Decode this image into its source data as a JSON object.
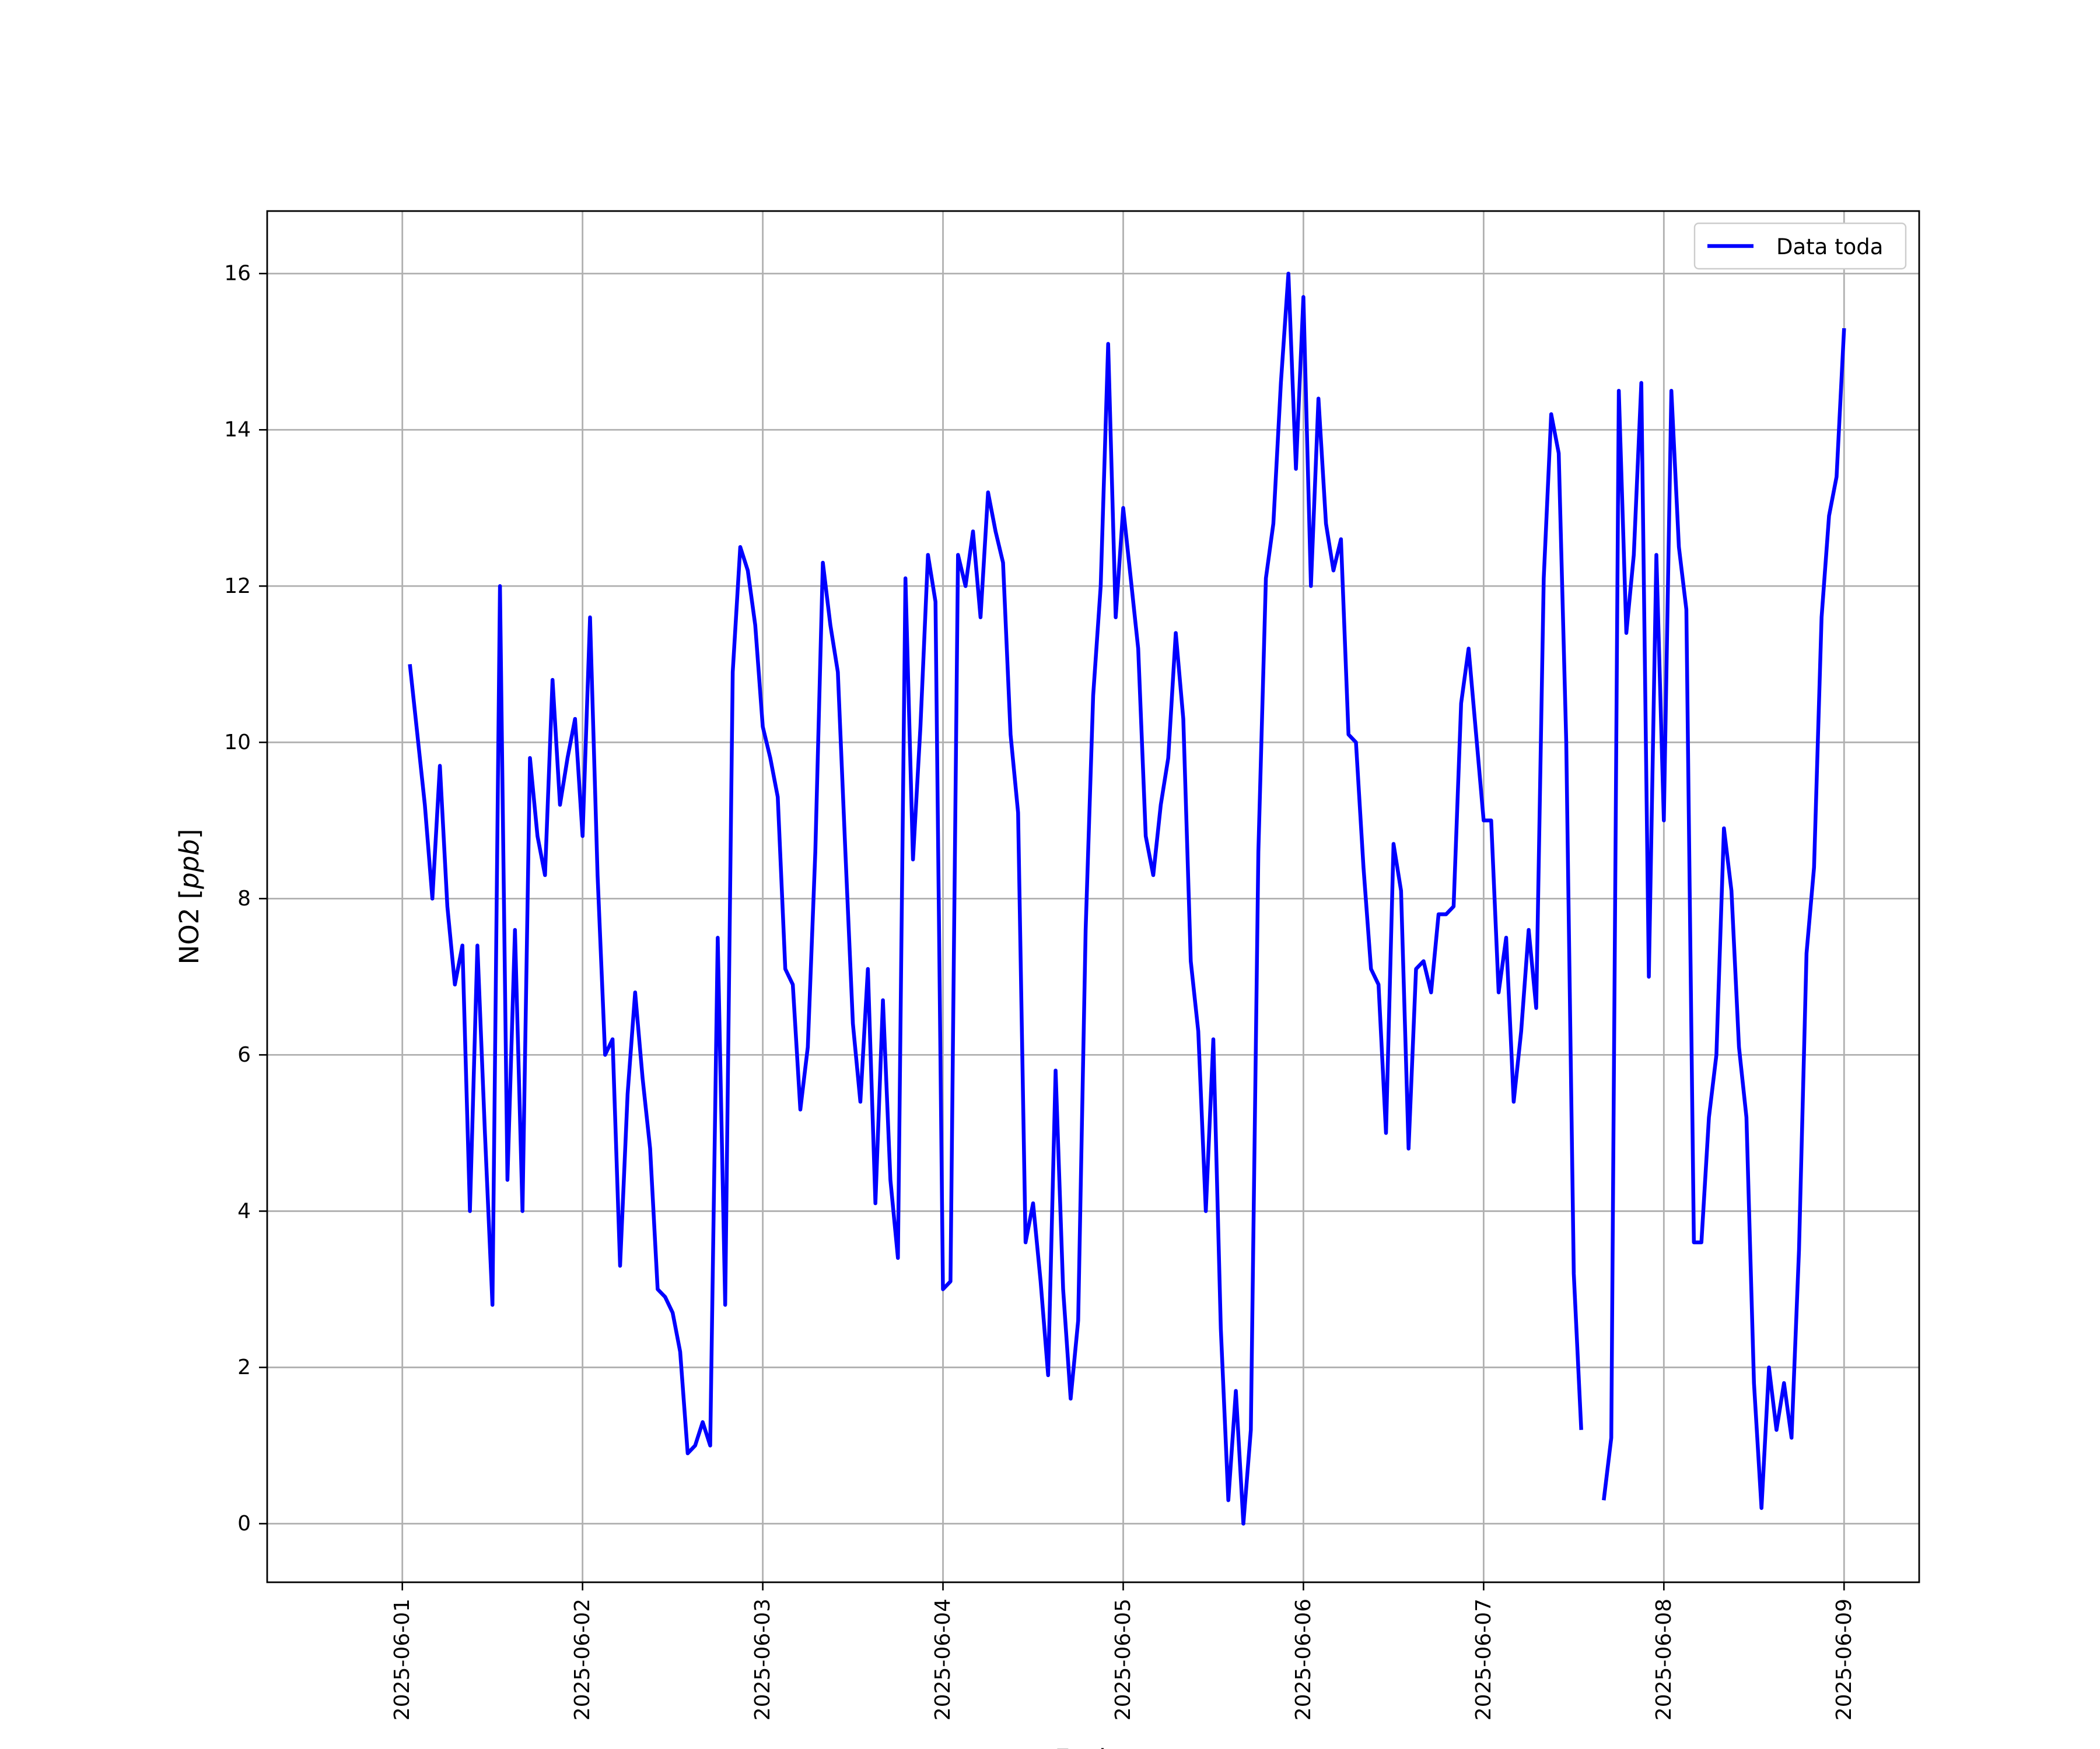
{
  "chart_data": {
    "type": "line",
    "title": "",
    "xlabel": "Fecha",
    "ylabel": "NO2 [",
    "ylabel_unit": "ppb",
    "ylabel_close": "]",
    "x_ticks": [
      "2025-06-01",
      "2025-06-02",
      "2025-06-03",
      "2025-06-04",
      "2025-06-05",
      "2025-06-06",
      "2025-06-07",
      "2025-06-08",
      "2025-06-09"
    ],
    "y_ticks": [
      0,
      2,
      4,
      6,
      8,
      10,
      12,
      14,
      16
    ],
    "xlim": [
      "2025-05-31 06:00",
      "2025-06-09 10:00"
    ],
    "ylim": [
      -0.75,
      16.8
    ],
    "grid": true,
    "legend_position": "top-right",
    "series": [
      {
        "name": "Data toda",
        "color": "#0000ff",
        "x": [
          "2025-06-01 01:00",
          "2025-06-01 02:00",
          "2025-06-01 03:00",
          "2025-06-01 04:00",
          "2025-06-01 05:00",
          "2025-06-01 06:00",
          "2025-06-01 07:00",
          "2025-06-01 08:00",
          "2025-06-01 09:00",
          "2025-06-01 10:00",
          "2025-06-01 11:00",
          "2025-06-01 12:00",
          "2025-06-01 13:00",
          "2025-06-01 14:00",
          "2025-06-01 15:00",
          "2025-06-01 16:00",
          "2025-06-01 17:00",
          "2025-06-01 18:00",
          "2025-06-01 19:00",
          "2025-06-01 20:00",
          "2025-06-01 21:00",
          "2025-06-01 22:00",
          "2025-06-01 23:00",
          "2025-06-02 00:00",
          "2025-06-02 01:00",
          "2025-06-02 02:00",
          "2025-06-02 03:00",
          "2025-06-02 04:00",
          "2025-06-02 05:00",
          "2025-06-02 06:00",
          "2025-06-02 07:00",
          "2025-06-02 08:00",
          "2025-06-02 09:00",
          "2025-06-02 10:00",
          "2025-06-02 11:00",
          "2025-06-02 12:00",
          "2025-06-02 13:00",
          "2025-06-02 14:00",
          "2025-06-02 15:00",
          "2025-06-02 16:00",
          "2025-06-02 17:00",
          "2025-06-02 18:00",
          "2025-06-02 19:00",
          "2025-06-02 20:00",
          "2025-06-02 21:00",
          "2025-06-02 22:00",
          "2025-06-02 23:00",
          "2025-06-03 00:00",
          "2025-06-03 01:00",
          "2025-06-03 02:00",
          "2025-06-03 03:00",
          "2025-06-03 04:00",
          "2025-06-03 05:00",
          "2025-06-03 06:00",
          "2025-06-03 07:00",
          "2025-06-03 08:00",
          "2025-06-03 09:00",
          "2025-06-03 10:00",
          "2025-06-03 11:00",
          "2025-06-03 12:00",
          "2025-06-03 13:00",
          "2025-06-03 14:00",
          "2025-06-03 15:00",
          "2025-06-03 16:00",
          "2025-06-03 17:00",
          "2025-06-03 18:00",
          "2025-06-03 19:00",
          "2025-06-03 20:00",
          "2025-06-03 21:00",
          "2025-06-03 22:00",
          "2025-06-03 23:00",
          "2025-06-04 00:00",
          "2025-06-04 01:00",
          "2025-06-04 02:00",
          "2025-06-04 03:00",
          "2025-06-04 04:00",
          "2025-06-04 05:00",
          "2025-06-04 06:00",
          "2025-06-04 07:00",
          "2025-06-04 08:00",
          "2025-06-04 09:00",
          "2025-06-04 10:00",
          "2025-06-04 11:00",
          "2025-06-04 12:00",
          "2025-06-04 13:00",
          "2025-06-04 14:00",
          "2025-06-04 15:00",
          "2025-06-04 16:00",
          "2025-06-04 17:00",
          "2025-06-04 18:00",
          "2025-06-04 19:00",
          "2025-06-04 20:00",
          "2025-06-04 21:00",
          "2025-06-04 22:00",
          "2025-06-04 23:00",
          "2025-06-05 00:00",
          "2025-06-05 01:00",
          "2025-06-05 02:00",
          "2025-06-05 03:00",
          "2025-06-05 04:00",
          "2025-06-05 05:00",
          "2025-06-05 06:00",
          "2025-06-05 07:00",
          "2025-06-05 08:00",
          "2025-06-05 09:00",
          "2025-06-05 10:00",
          "2025-06-05 11:00",
          "2025-06-05 12:00",
          "2025-06-05 13:00",
          "2025-06-05 14:00",
          "2025-06-05 15:00",
          "2025-06-05 16:00",
          "2025-06-05 17:00",
          "2025-06-05 18:00",
          "2025-06-05 19:00",
          "2025-06-05 20:00",
          "2025-06-05 21:00",
          "2025-06-05 22:00",
          "2025-06-05 23:00",
          "2025-06-06 00:00",
          "2025-06-06 01:00",
          "2025-06-06 02:00",
          "2025-06-06 03:00",
          "2025-06-06 04:00",
          "2025-06-06 05:00",
          "2025-06-06 06:00",
          "2025-06-06 07:00",
          "2025-06-06 08:00",
          "2025-06-06 09:00",
          "2025-06-06 10:00",
          "2025-06-06 11:00",
          "2025-06-06 12:00",
          "2025-06-06 13:00",
          "2025-06-06 14:00",
          "2025-06-06 15:00",
          "2025-06-06 16:00",
          "2025-06-06 17:00",
          "2025-06-06 18:00",
          "2025-06-06 19:00",
          "2025-06-06 20:00",
          "2025-06-06 21:00",
          "2025-06-06 22:00",
          "2025-06-06 23:00",
          "2025-06-07 00:00",
          "2025-06-07 01:00",
          "2025-06-07 02:00",
          "2025-06-07 03:00",
          "2025-06-07 04:00",
          "2025-06-07 05:00",
          "2025-06-07 06:00",
          "2025-06-07 07:00",
          "2025-06-07 08:00",
          "2025-06-07 09:00",
          "2025-06-07 10:00",
          "2025-06-07 11:00",
          "2025-06-07 12:00",
          "2025-06-07 13:00",
          null,
          "2025-06-07 16:00",
          "2025-06-07 17:00",
          "2025-06-07 18:00",
          "2025-06-07 19:00",
          "2025-06-07 20:00",
          "2025-06-07 21:00",
          "2025-06-07 22:00",
          "2025-06-07 23:00",
          "2025-06-08 00:00",
          "2025-06-08 01:00",
          "2025-06-08 02:00",
          "2025-06-08 03:00",
          "2025-06-08 04:00",
          "2025-06-08 05:00",
          "2025-06-08 06:00",
          "2025-06-08 07:00",
          "2025-06-08 08:00",
          "2025-06-08 09:00",
          "2025-06-08 10:00",
          "2025-06-08 11:00",
          "2025-06-08 12:00",
          "2025-06-08 13:00",
          "2025-06-08 14:00",
          "2025-06-08 15:00",
          "2025-06-08 16:00",
          "2025-06-08 17:00",
          "2025-06-08 18:00",
          "2025-06-08 19:00",
          "2025-06-08 20:00",
          "2025-06-08 21:00",
          "2025-06-08 22:00",
          "2025-06-08 23:00",
          "2025-06-09 00:00"
        ],
        "y": [
          11.0,
          10.1,
          9.2,
          8.0,
          9.7,
          7.9,
          6.9,
          7.4,
          4.0,
          7.4,
          5.0,
          2.8,
          12.0,
          4.4,
          7.6,
          4.0,
          9.8,
          8.8,
          8.3,
          10.8,
          9.2,
          9.8,
          10.3,
          8.8,
          11.6,
          8.3,
          6.0,
          6.2,
          3.3,
          5.5,
          6.8,
          5.7,
          4.8,
          3.0,
          2.9,
          2.7,
          2.2,
          0.9,
          1.0,
          1.3,
          1.0,
          7.5,
          2.8,
          10.9,
          12.5,
          12.2,
          11.5,
          10.2,
          9.8,
          9.3,
          7.1,
          6.9,
          5.3,
          6.1,
          8.6,
          12.3,
          11.5,
          10.9,
          8.6,
          6.4,
          5.4,
          7.1,
          4.1,
          6.7,
          4.4,
          3.4,
          12.1,
          8.5,
          10.2,
          12.4,
          11.8,
          3.0,
          3.1,
          12.4,
          12.0,
          12.7,
          11.6,
          13.2,
          12.7,
          12.3,
          10.1,
          9.1,
          3.6,
          4.1,
          3.1,
          1.9,
          5.8,
          3.0,
          1.6,
          2.6,
          7.6,
          10.6,
          12.0,
          15.1,
          11.6,
          13.0,
          12.1,
          11.2,
          8.8,
          8.3,
          9.2,
          9.8,
          11.4,
          10.3,
          7.2,
          6.3,
          4.0,
          6.2,
          2.5,
          0.3,
          1.7,
          0.0,
          1.2,
          8.6,
          12.1,
          12.8,
          14.6,
          16.0,
          13.5,
          15.7,
          12.0,
          14.4,
          12.8,
          12.2,
          12.6,
          10.1,
          10.0,
          8.4,
          7.1,
          6.9,
          5.0,
          8.7,
          8.1,
          4.8,
          7.1,
          7.2,
          6.8,
          7.8,
          7.8,
          7.9,
          10.5,
          11.2,
          10.1,
          9.0,
          9.0,
          6.8,
          7.5,
          5.4,
          6.3,
          7.6,
          6.6,
          12.1,
          14.2,
          13.7,
          10.0,
          3.2,
          1.2,
          null,
          0.3,
          1.1,
          14.5,
          11.4,
          12.4,
          14.6,
          7.0,
          12.4,
          9.0,
          14.5,
          12.5,
          11.7,
          3.6,
          3.6,
          5.2,
          6.0,
          8.9,
          8.1,
          6.1,
          5.2,
          1.8,
          0.2,
          2.0,
          1.2,
          1.8,
          1.1,
          3.5,
          7.3,
          8.4,
          11.6,
          12.9,
          13.4,
          15.3
        ]
      }
    ]
  }
}
